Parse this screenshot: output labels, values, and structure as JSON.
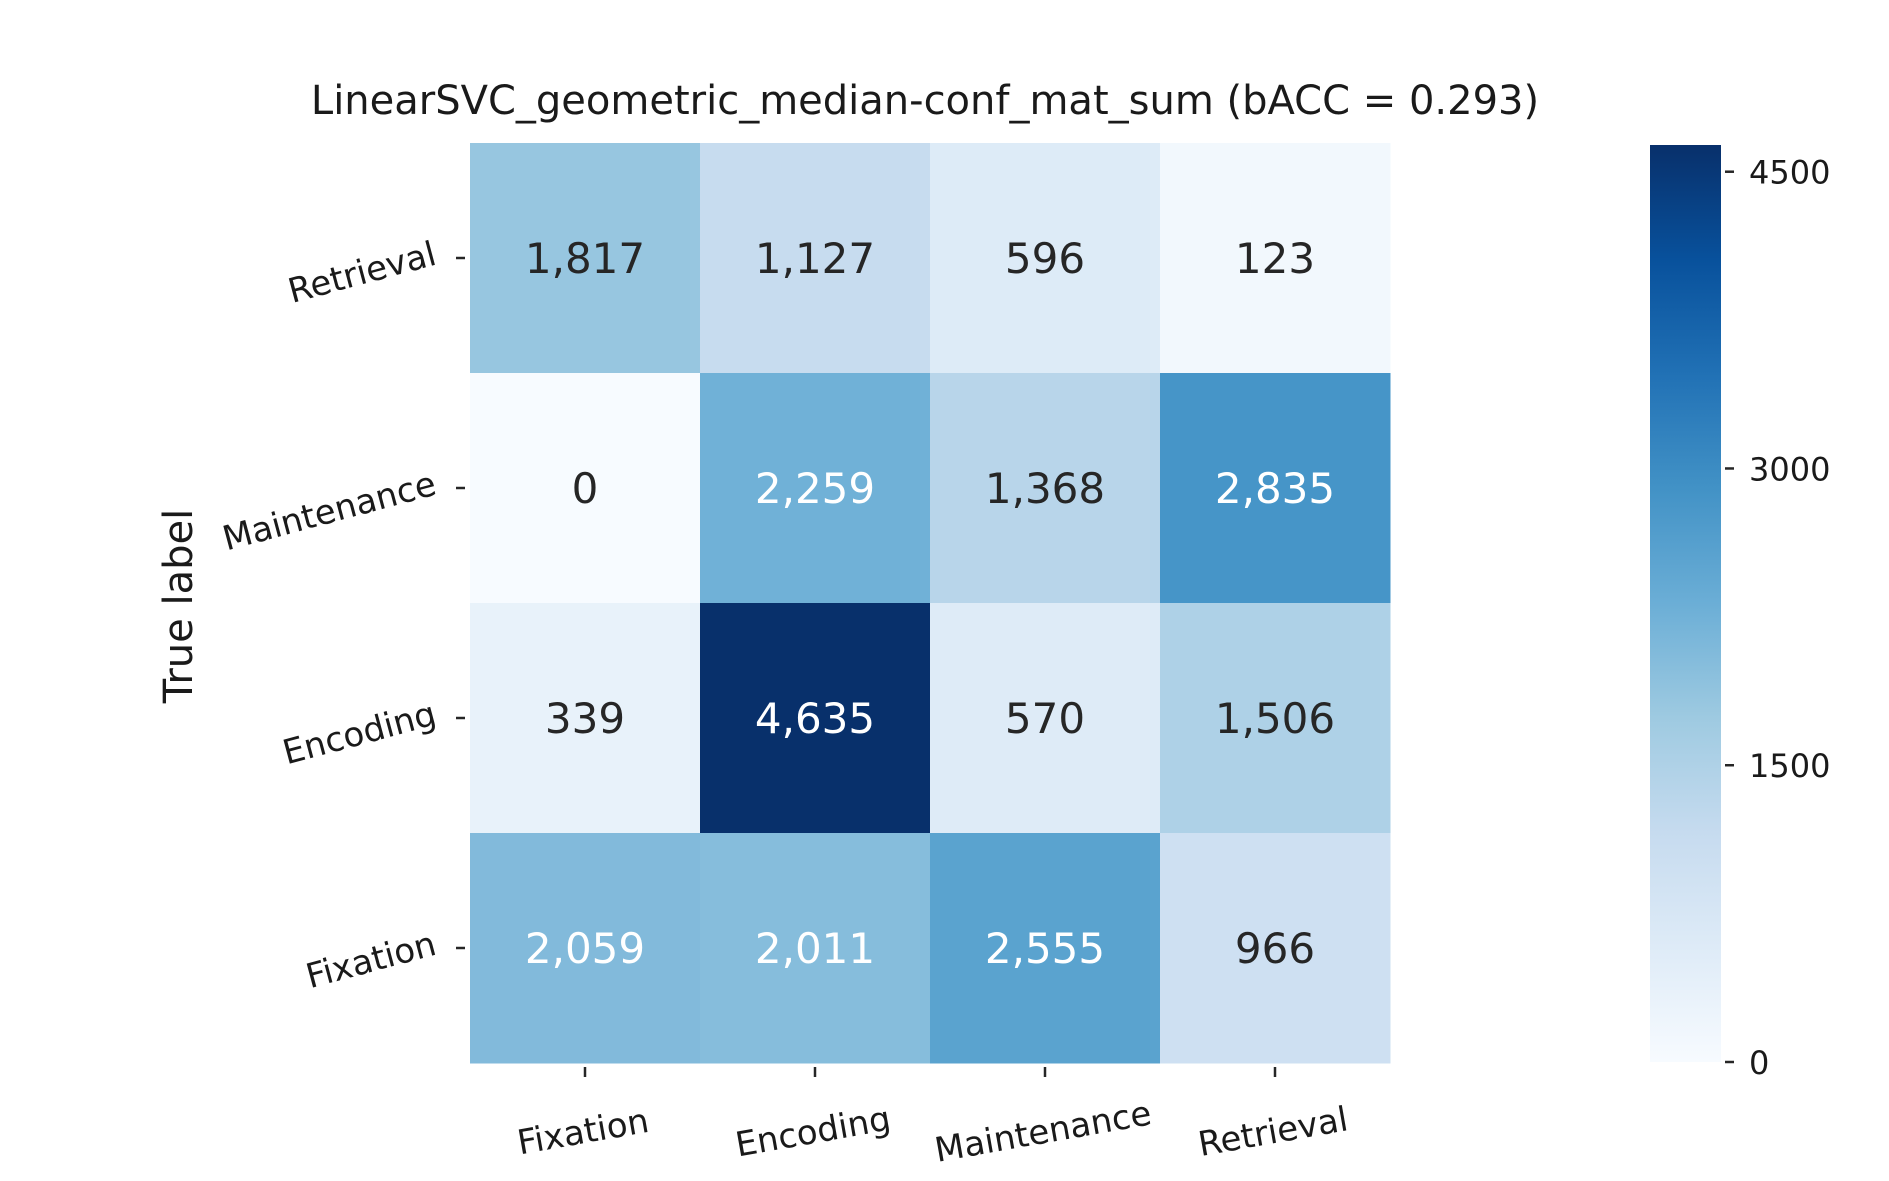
{
  "chart_data": {
    "type": "heatmap",
    "title": "LinearSVC_geometric_median-conf_mat_sum (bACC = 0.293)",
    "ylabel": "True label",
    "xlabel": "",
    "x_categories": [
      "Fixation",
      "Encoding",
      "Maintenance",
      "Retrieval"
    ],
    "y_categories": [
      "Retrieval",
      "Maintenance",
      "Encoding",
      "Fixation"
    ],
    "values": [
      [
        1817,
        1127,
        596,
        123
      ],
      [
        0,
        2259,
        1368,
        2835
      ],
      [
        339,
        4635,
        570,
        1506
      ],
      [
        2059,
        2011,
        2555,
        966
      ]
    ],
    "cell_labels": [
      [
        "1,817",
        "1,127",
        "596",
        "123"
      ],
      [
        "0",
        "2,259",
        "1,368",
        "2,835"
      ],
      [
        "339",
        "4,635",
        "570",
        "1,506"
      ],
      [
        "2,059",
        "2,011",
        "2,555",
        "966"
      ]
    ],
    "colorscale": "Blues",
    "color_range": [
      0,
      4635
    ],
    "colorbar_ticks": [
      0,
      1500,
      3000,
      4500
    ],
    "colorbar_tick_labels": [
      "0",
      "1500",
      "3000",
      "4500"
    ],
    "grid": false
  }
}
